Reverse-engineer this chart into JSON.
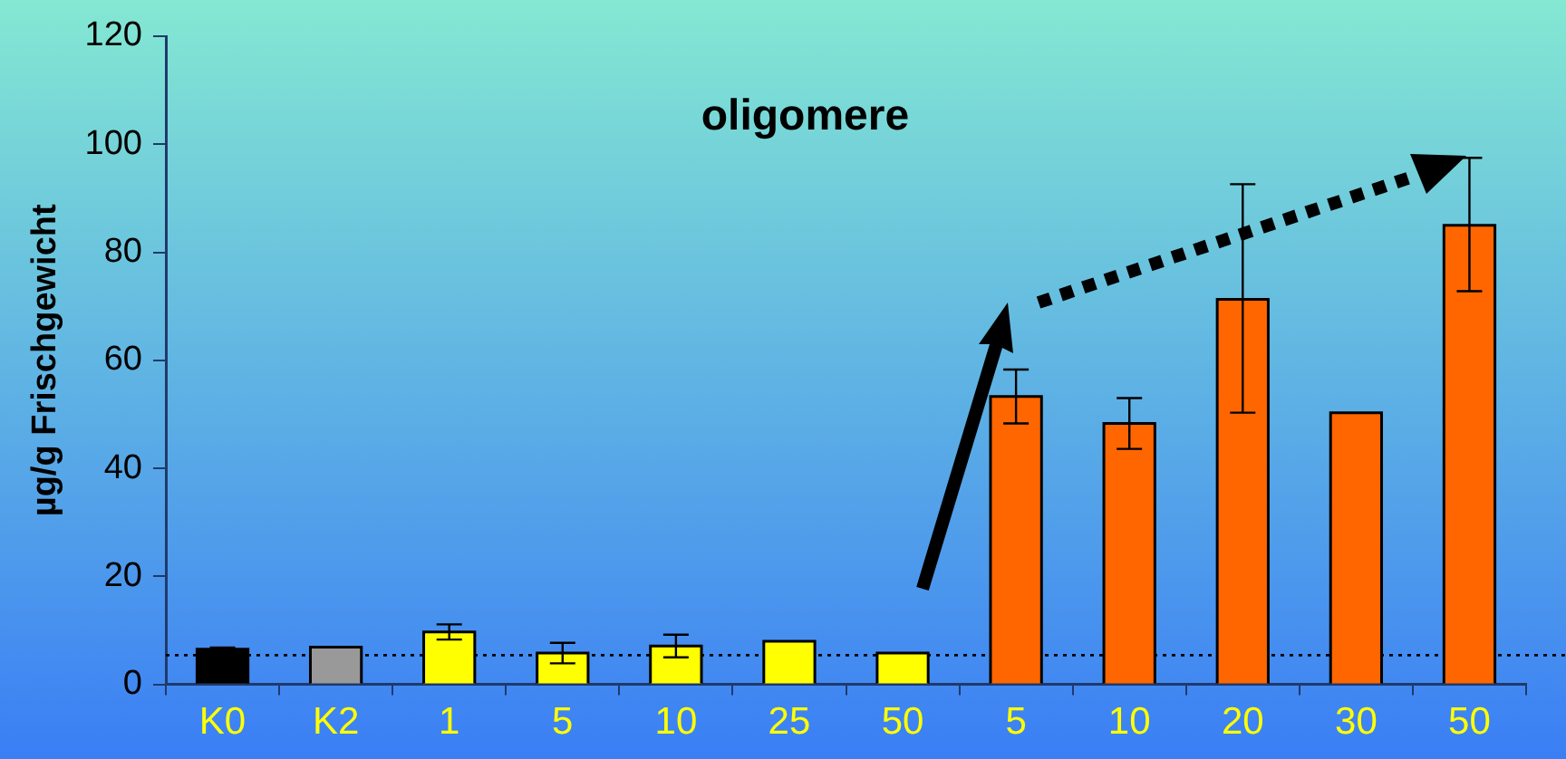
{
  "chart_data": {
    "type": "bar",
    "title": "oligomere",
    "ylabel": "µg/g Frischgewicht",
    "categories": [
      "K0",
      "K2",
      "1",
      "5",
      "10",
      "25",
      "50",
      "5",
      "10",
      "20",
      "30",
      "50"
    ],
    "values": [
      6.5,
      6.9,
      9.7,
      5.8,
      7.1,
      8,
      5.8,
      53.3,
      48.3,
      71.3,
      50.3,
      85
    ],
    "colors": [
      "#000000",
      "#999999",
      "#ffff00",
      "#ffff00",
      "#ffff00",
      "#ffff00",
      "#ffff00",
      "#ff6600",
      "#ff6600",
      "#ff6600",
      "#ff6600",
      "#ff6600"
    ],
    "errors": [
      0.3,
      null,
      1.4,
      1.9,
      2.1,
      null,
      null,
      5,
      4.7,
      [
        50.3,
        92.6
      ],
      null,
      [
        72.8,
        97.5
      ]
    ],
    "ylim": [
      0,
      120
    ],
    "yticks": [
      0,
      20,
      40,
      60,
      80,
      100,
      120
    ],
    "grid": false,
    "legend": false,
    "ref_lines": [
      {
        "axis": "y",
        "value": 5.4,
        "line_style": "dotted",
        "color": "#000000"
      }
    ]
  }
}
